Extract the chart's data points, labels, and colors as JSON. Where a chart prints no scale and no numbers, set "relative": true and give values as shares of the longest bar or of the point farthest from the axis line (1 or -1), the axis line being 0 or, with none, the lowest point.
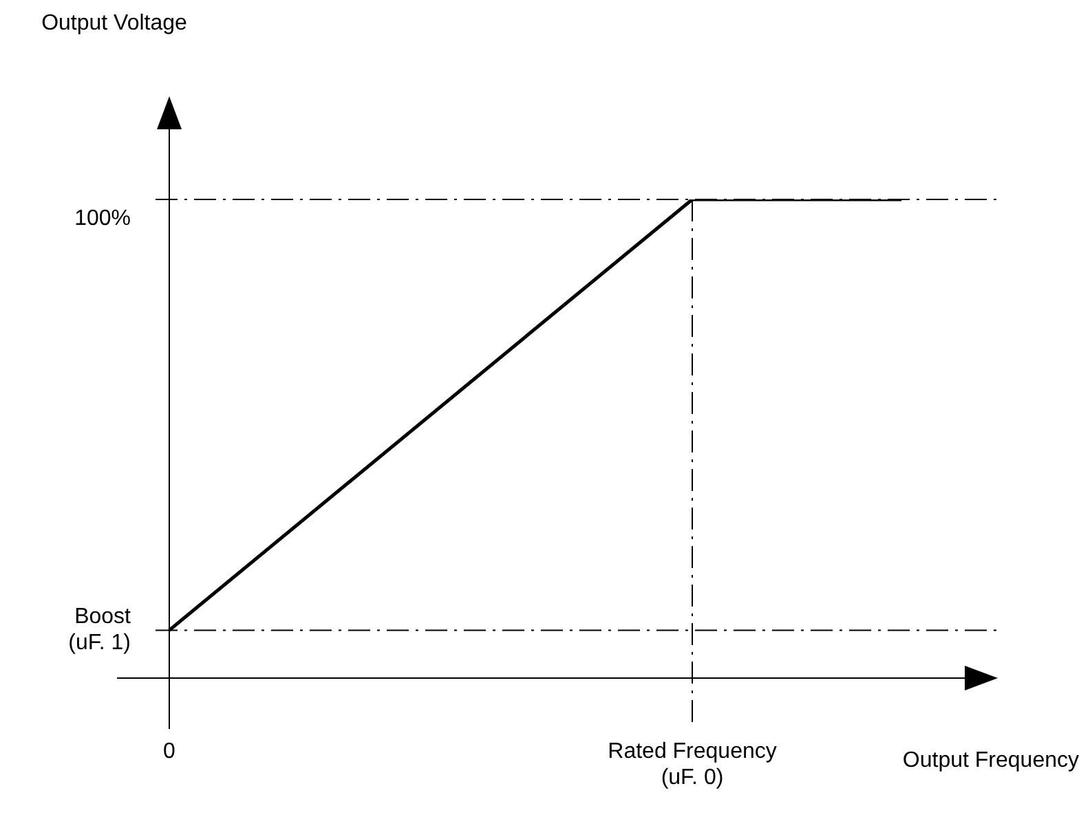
{
  "chart_data": {
    "type": "line",
    "xlabel": "Output Frequency",
    "relative": true,
    "categories": [
      "0",
      null,
      null,
      null,
      null,
      "Rated Frequency\n(uF. 0)",
      null,
      null
    ],
    "series": [
      {
        "color": "#000000",
        "values": [
          0.1,
          null,
          null,
          null,
          null,
          1,
          null,
          1
        ]
      }
    ],
    "annotations": [
      "Output Voltage"
    ],
    "ref_lines": [
      {
        "axis": "y",
        "value": 1,
        "label": "100%",
        "color": "#000000",
        "line_style": "dashed"
      },
      {
        "axis": "y",
        "value": 0.1,
        "label": "Boost\n(uF. 1)",
        "color": "#000000",
        "line_style": "dashed"
      },
      {
        "axis": "x",
        "value": "Rated Frequency\n(uF. 0)",
        "color": "#000000",
        "line_style": "dashed"
      }
    ],
    "grid": false,
    "legend": false,
    "marker": "none",
    "line_style": "solid"
  }
}
